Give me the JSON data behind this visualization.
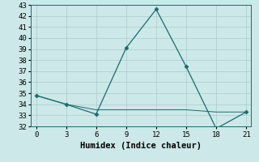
{
  "xlabel": "Humidex (Indice chaleur)",
  "x": [
    0,
    3,
    6,
    9,
    12,
    15,
    18,
    21
  ],
  "line1_y": [
    34.8,
    34.0,
    33.1,
    39.1,
    42.6,
    37.4,
    31.8,
    33.3
  ],
  "line2_y": [
    34.8,
    34.0,
    33.5,
    33.5,
    33.5,
    33.5,
    33.3,
    33.3
  ],
  "line_color": "#1a6b6b",
  "marker": "D",
  "marker_size": 2.5,
  "bg_color": "#cce8e8",
  "grid_color": "#aacccc",
  "ylim": [
    32,
    43
  ],
  "xlim": [
    -0.5,
    21.5
  ],
  "yticks": [
    32,
    33,
    34,
    35,
    36,
    37,
    38,
    39,
    40,
    41,
    42,
    43
  ],
  "xticks": [
    0,
    3,
    6,
    9,
    12,
    15,
    18,
    21
  ],
  "tick_fontsize": 6.5,
  "xlabel_fontsize": 7.5
}
